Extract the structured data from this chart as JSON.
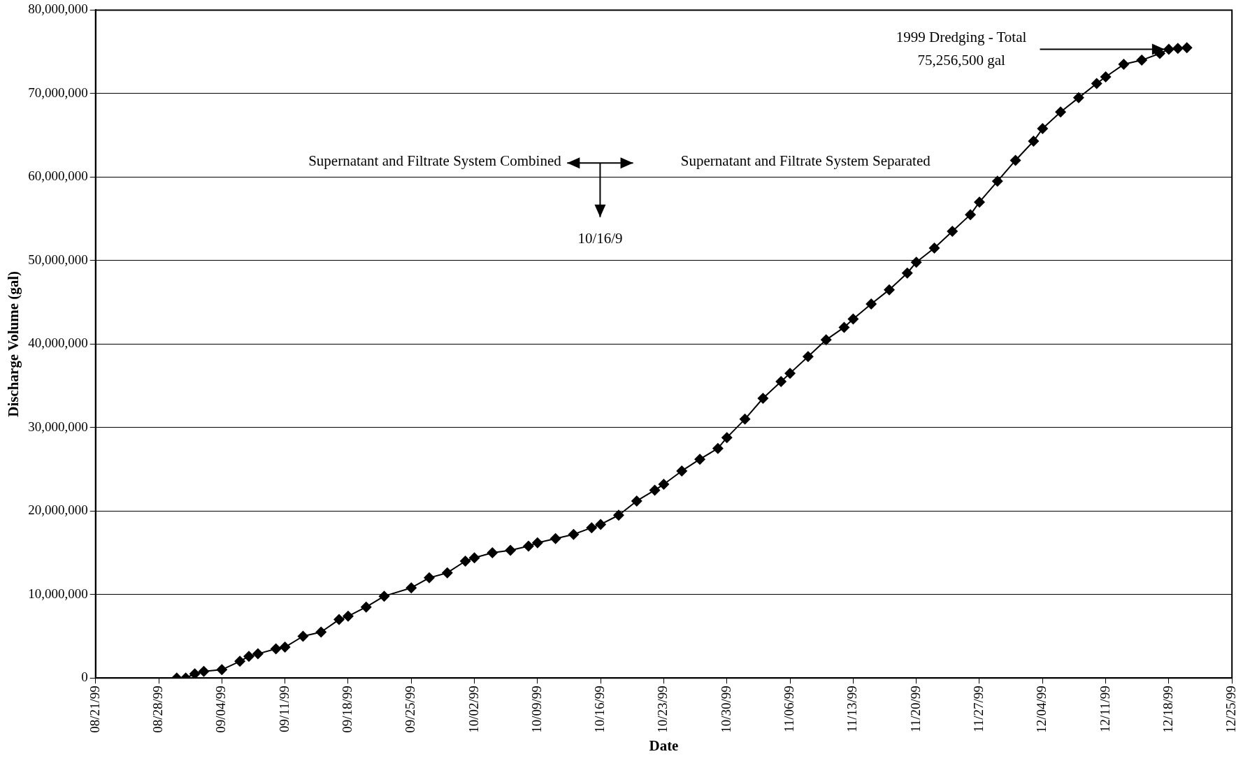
{
  "chart_data": {
    "type": "line",
    "xlabel": "Date",
    "ylabel": "Discharge Volume (gal)",
    "x": [
      "1999-08-30",
      "1999-08-31",
      "1999-09-01",
      "1999-09-02",
      "1999-09-04",
      "1999-09-06",
      "1999-09-07",
      "1999-09-08",
      "1999-09-10",
      "1999-09-11",
      "1999-09-13",
      "1999-09-15",
      "1999-09-17",
      "1999-09-18",
      "1999-09-20",
      "1999-09-22",
      "1999-09-25",
      "1999-09-27",
      "1999-09-29",
      "1999-10-01",
      "1999-10-02",
      "1999-10-04",
      "1999-10-06",
      "1999-10-08",
      "1999-10-09",
      "1999-10-11",
      "1999-10-13",
      "1999-10-15",
      "1999-10-16",
      "1999-10-18",
      "1999-10-20",
      "1999-10-22",
      "1999-10-23",
      "1999-10-25",
      "1999-10-27",
      "1999-10-29",
      "1999-10-30",
      "1999-11-01",
      "1999-11-03",
      "1999-11-05",
      "1999-11-06",
      "1999-11-08",
      "1999-11-10",
      "1999-11-12",
      "1999-11-13",
      "1999-11-15",
      "1999-11-17",
      "1999-11-19",
      "1999-11-20",
      "1999-11-22",
      "1999-11-24",
      "1999-11-26",
      "1999-11-27",
      "1999-11-29",
      "1999-12-01",
      "1999-12-03",
      "1999-12-04",
      "1999-12-06",
      "1999-12-08",
      "1999-12-10",
      "1999-12-11",
      "1999-12-13",
      "1999-12-15",
      "1999-12-17",
      "1999-12-18",
      "1999-12-19",
      "1999-12-20"
    ],
    "series": [
      {
        "color": "#000000",
        "values": [
          0,
          0,
          500000,
          800000,
          1000000,
          2000000,
          2600000,
          2900000,
          3500000,
          3700000,
          5000000,
          5500000,
          7000000,
          7400000,
          8500000,
          9800000,
          10800000,
          12000000,
          12600000,
          14000000,
          14400000,
          15000000,
          15300000,
          15800000,
          16200000,
          16700000,
          17200000,
          18000000,
          18400000,
          19500000,
          21200000,
          22500000,
          23200000,
          24800000,
          26200000,
          27500000,
          28800000,
          31000000,
          33500000,
          35500000,
          36500000,
          38500000,
          40500000,
          42000000,
          43000000,
          44800000,
          46500000,
          48500000,
          49800000,
          51500000,
          53500000,
          55500000,
          57000000,
          59500000,
          62000000,
          64300000,
          65800000,
          67800000,
          69500000,
          71200000,
          72000000,
          73500000,
          74000000,
          74800000,
          75300000,
          75400000,
          75500000
        ]
      }
    ],
    "xlim": [
      "1999-08-21",
      "1999-12-25"
    ],
    "xticks": [
      {
        "value": "1999-08-21",
        "label": "08/21/99"
      },
      {
        "value": "1999-08-28",
        "label": "08/28/99"
      },
      {
        "value": "1999-09-04",
        "label": "09/04/99"
      },
      {
        "value": "1999-09-11",
        "label": "09/11/99"
      },
      {
        "value": "1999-09-18",
        "label": "09/18/99"
      },
      {
        "value": "1999-09-25",
        "label": "09/25/99"
      },
      {
        "value": "1999-10-02",
        "label": "10/02/99"
      },
      {
        "value": "1999-10-09",
        "label": "10/09/99"
      },
      {
        "value": "1999-10-16",
        "label": "10/16/99"
      },
      {
        "value": "1999-10-23",
        "label": "10/23/99"
      },
      {
        "value": "1999-10-30",
        "label": "10/30/99"
      },
      {
        "value": "1999-11-06",
        "label": "11/06/99"
      },
      {
        "value": "1999-11-13",
        "label": "11/13/99"
      },
      {
        "value": "1999-11-20",
        "label": "11/20/99"
      },
      {
        "value": "1999-11-27",
        "label": "11/27/99"
      },
      {
        "value": "1999-12-04",
        "label": "12/04/99"
      },
      {
        "value": "1999-12-11",
        "label": "12/11/99"
      },
      {
        "value": "1999-12-18",
        "label": "12/18/99"
      },
      {
        "value": "1999-12-25",
        "label": "12/25/99"
      }
    ],
    "ylim": [
      0,
      80000000
    ],
    "yticks": [
      {
        "value": 0,
        "label": "0"
      },
      {
        "value": 10000000,
        "label": "10,000,000"
      },
      {
        "value": 20000000,
        "label": "20,000,000"
      },
      {
        "value": 30000000,
        "label": "30,000,000"
      },
      {
        "value": 40000000,
        "label": "40,000,000"
      },
      {
        "value": 50000000,
        "label": "50,000,000"
      },
      {
        "value": 60000000,
        "label": "60,000,000"
      },
      {
        "value": 70000000,
        "label": "70,000,000"
      },
      {
        "value": 80000000,
        "label": "80,000,000"
      }
    ],
    "grid": "y",
    "legend": false,
    "marker": "diamond",
    "line_style": "solid",
    "annotations": [
      "Supernatant and Filtrate System Combined",
      "Supernatant and Filtrate System Separated",
      "10/16/9",
      {
        "text": "1999 Dredging - Total\n75,256,500 gal",
        "x": "1999-12-18",
        "y": 75300000
      }
    ]
  }
}
